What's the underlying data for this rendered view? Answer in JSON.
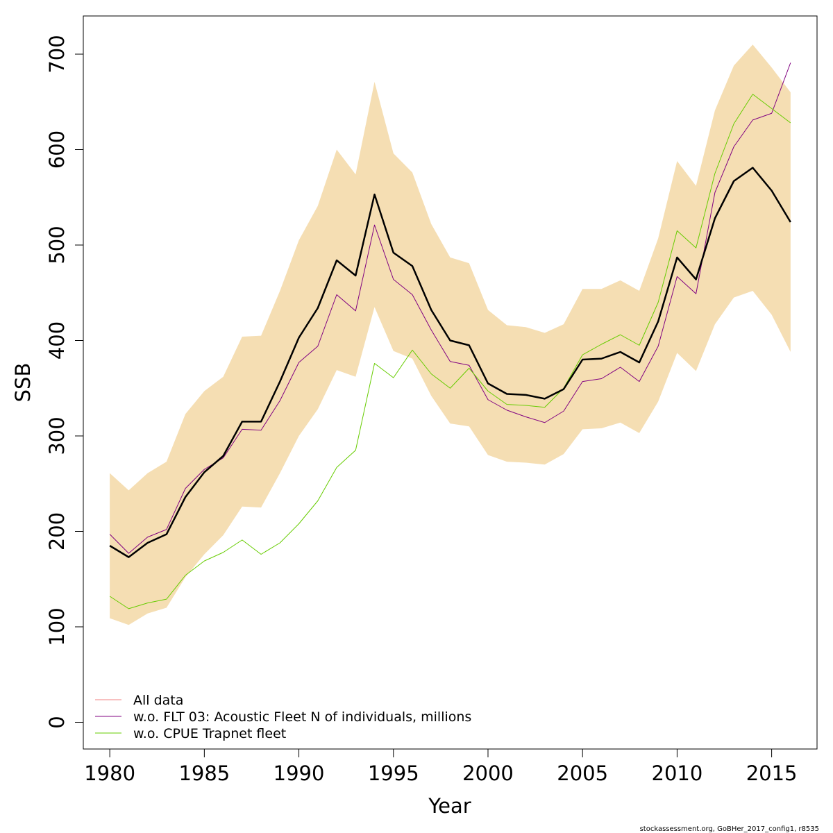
{
  "footer_text": "stockassessment.org, GoBHer_2017_config1, r8535",
  "chart_data": {
    "type": "line",
    "title": "",
    "xlabel": "Year",
    "ylabel": "SSB",
    "xlim": [
      1978.6,
      2017.4
    ],
    "ylim": [
      -28,
      740
    ],
    "xticks": [
      1980,
      1985,
      1990,
      1995,
      2000,
      2005,
      2010,
      2015
    ],
    "yticks": [
      0,
      100,
      200,
      300,
      400,
      500,
      600,
      700
    ],
    "grid": false,
    "legend_position": "bottom-left",
    "x": [
      1980,
      1981,
      1982,
      1983,
      1984,
      1985,
      1986,
      1987,
      1988,
      1989,
      1990,
      1991,
      1992,
      1993,
      1994,
      1995,
      1996,
      1997,
      1998,
      1999,
      2000,
      2001,
      2002,
      2003,
      2004,
      2005,
      2006,
      2007,
      2008,
      2009,
      2010,
      2011,
      2012,
      2013,
      2014,
      2015,
      2016
    ],
    "confidence_band": {
      "color": "#F5DEB3",
      "upper": [
        261,
        243,
        261,
        273,
        323,
        347,
        362,
        404,
        405,
        452,
        505,
        541,
        600,
        574,
        671,
        596,
        576,
        522,
        487,
        481,
        432,
        416,
        414,
        408,
        417,
        454,
        454,
        463,
        452,
        507,
        588,
        562,
        641,
        688,
        710,
        686,
        660
      ],
      "lower": [
        109,
        102,
        114,
        120,
        152,
        176,
        196,
        226,
        225,
        261,
        300,
        328,
        369,
        362,
        435,
        389,
        381,
        342,
        313,
        310,
        280,
        273,
        272,
        270,
        281,
        307,
        308,
        314,
        303,
        336,
        387,
        368,
        417,
        445,
        452,
        427,
        388
      ]
    },
    "series": [
      {
        "name": "All data",
        "color": "#000000",
        "legend_color": "#F08080",
        "width": 2.5,
        "values": [
          185,
          173,
          188,
          197,
          236,
          262,
          279,
          315,
          315,
          357,
          403,
          434,
          484,
          468,
          553,
          492,
          478,
          432,
          400,
          395,
          355,
          344,
          343,
          339,
          349,
          380,
          381,
          388,
          377,
          420,
          487,
          464,
          528,
          567,
          581,
          557,
          524
        ]
      },
      {
        "name": "w.o. FLT 03: Acoustic Fleet   N of individuals, millions",
        "color": "#800080",
        "width": 1,
        "values": [
          197,
          177,
          194,
          202,
          245,
          265,
          277,
          307,
          306,
          337,
          377,
          394,
          448,
          431,
          521,
          464,
          448,
          411,
          378,
          374,
          338,
          327,
          320,
          314,
          326,
          357,
          360,
          372,
          357,
          394,
          467,
          449,
          555,
          603,
          631,
          638,
          691
        ]
      },
      {
        "name": "w.o. CPUE Trapnet fleet",
        "color": "#66CC00",
        "width": 1,
        "values": [
          132,
          119,
          125,
          129,
          154,
          169,
          178,
          191,
          176,
          188,
          208,
          232,
          267,
          285,
          376,
          361,
          390,
          365,
          350,
          371,
          347,
          333,
          332,
          330,
          350,
          385,
          396,
          406,
          395,
          440,
          515,
          497,
          575,
          627,
          658,
          643,
          628
        ]
      }
    ]
  }
}
